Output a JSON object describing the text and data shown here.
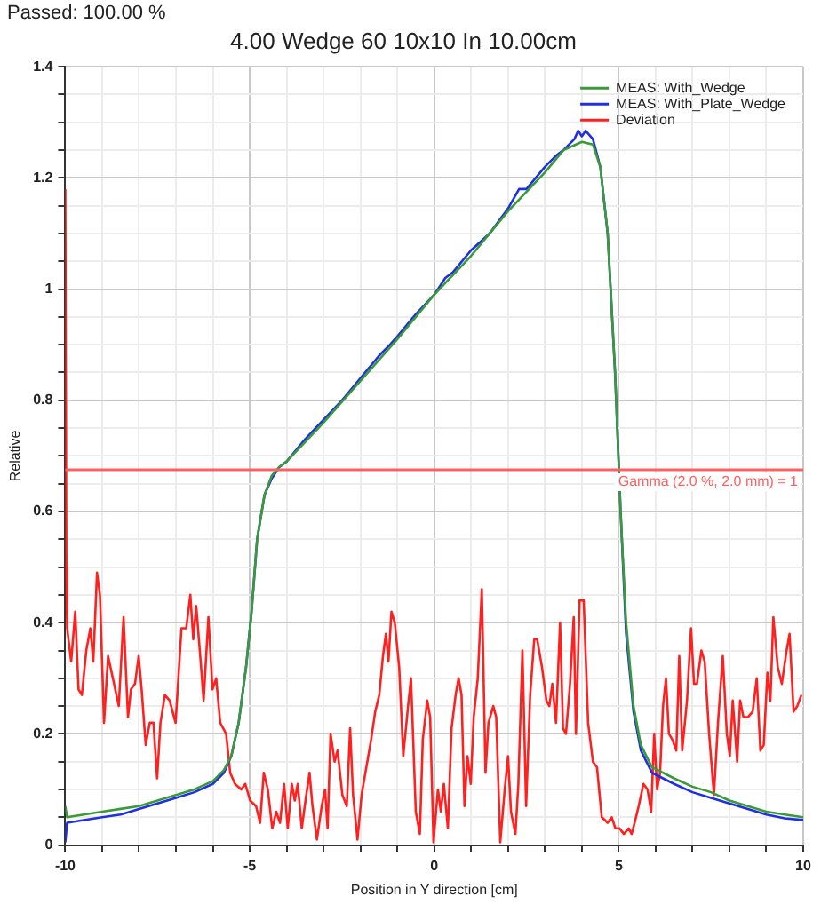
{
  "chart_data": {
    "type": "line",
    "title": "4.00 Wedge 60 10x10 In 10.00cm",
    "xlabel": "Position in Y direction [cm]",
    "ylabel": "Relative",
    "annotations": [
      "Passed: 100.00 %"
    ],
    "xlim": [
      -10,
      10
    ],
    "ylim": [
      0,
      1.4
    ],
    "xticks": [
      -10,
      {
        "value": -9,
        "label": null
      },
      {
        "value": -8,
        "label": null
      },
      {
        "value": -7,
        "label": null
      },
      {
        "value": -6,
        "label": null
      },
      -5,
      {
        "value": -4,
        "label": null
      },
      {
        "value": -3,
        "label": null
      },
      {
        "value": -2,
        "label": null
      },
      {
        "value": -1,
        "label": null
      },
      0,
      {
        "value": 1,
        "label": null
      },
      {
        "value": 2,
        "label": null
      },
      {
        "value": 3,
        "label": null
      },
      {
        "value": 4,
        "label": null
      },
      5,
      {
        "value": 6,
        "label": null
      },
      {
        "value": 7,
        "label": null
      },
      {
        "value": 8,
        "label": null
      },
      {
        "value": 9,
        "label": null
      },
      10
    ],
    "yticks": [
      0,
      {
        "value": 0.05,
        "label": null
      },
      {
        "value": 0.1,
        "label": null
      },
      {
        "value": 0.15,
        "label": null
      },
      0.2,
      {
        "value": 0.25,
        "label": null
      },
      {
        "value": 0.3,
        "label": null
      },
      {
        "value": 0.35,
        "label": null
      },
      0.4,
      {
        "value": 0.45,
        "label": null
      },
      {
        "value": 0.5,
        "label": null
      },
      {
        "value": 0.55,
        "label": null
      },
      0.6,
      {
        "value": 0.65,
        "label": null
      },
      {
        "value": 0.7,
        "label": null
      },
      {
        "value": 0.75,
        "label": null
      },
      0.8,
      {
        "value": 0.85,
        "label": null
      },
      {
        "value": 0.9,
        "label": null
      },
      {
        "value": 0.95,
        "label": null
      },
      1,
      {
        "value": 1.05,
        "label": null
      },
      {
        "value": 1.1,
        "label": null
      },
      {
        "value": 1.15,
        "label": null
      },
      1.2,
      {
        "value": 1.25,
        "label": null
      },
      {
        "value": 1.3,
        "label": null
      },
      {
        "value": 1.35,
        "label": null
      },
      1.4
    ],
    "grid": true,
    "legend": "top right",
    "marker": "none",
    "line_style": "solid",
    "ref_lines": [
      {
        "axis": "y",
        "value": 0.675,
        "label": "Gamma (2.0 %, 2.0 mm) = 1",
        "color": "#ff6060"
      }
    ],
    "series": [
      {
        "name": "MEAS: With_Wedge",
        "color": "#3a9a3a",
        "x": [
          -10,
          -9.95,
          -9.5,
          -9,
          -8.5,
          -8,
          -7.5,
          -7,
          -6.5,
          -6,
          -5.7,
          -5.5,
          -5.3,
          -5.1,
          -4.95,
          -4.8,
          -4.6,
          -4.4,
          -4.2,
          -4,
          -3,
          -2,
          -1,
          0,
          1,
          2,
          3,
          3.5,
          4,
          4.3,
          4.5,
          4.7,
          4.9,
          5.05,
          5.2,
          5.4,
          5.6,
          5.9,
          6.5,
          7,
          7.5,
          8,
          8.5,
          9,
          9.5,
          10
        ],
        "values": [
          0.07,
          0.05,
          0.055,
          0.06,
          0.065,
          0.07,
          0.08,
          0.09,
          0.1,
          0.115,
          0.135,
          0.16,
          0.22,
          0.32,
          0.42,
          0.55,
          0.63,
          0.665,
          0.68,
          0.69,
          0.76,
          0.835,
          0.91,
          0.99,
          1.06,
          1.14,
          1.21,
          1.25,
          1.265,
          1.26,
          1.22,
          1.1,
          0.85,
          0.6,
          0.4,
          0.25,
          0.18,
          0.14,
          0.12,
          0.105,
          0.095,
          0.08,
          0.07,
          0.06,
          0.055,
          0.05
        ]
      },
      {
        "name": "MEAS: With_Plate_Wedge",
        "color": "#2030e0",
        "x": [
          -10,
          -9.95,
          -9.5,
          -9,
          -8.5,
          -8,
          -7.5,
          -7,
          -6.5,
          -6,
          -5.7,
          -5.5,
          -5.3,
          -5.1,
          -4.95,
          -4.8,
          -4.6,
          -4.4,
          -4.2,
          -4,
          -3.5,
          -3,
          -2.5,
          -2,
          -1.5,
          -1.2,
          -1,
          -0.5,
          0,
          0.3,
          0.5,
          1,
          1.5,
          2,
          2.3,
          2.5,
          3,
          3.3,
          3.5,
          3.8,
          3.9,
          4,
          4.1,
          4.3,
          4.5,
          4.7,
          4.9,
          5.05,
          5.2,
          5.4,
          5.6,
          5.9,
          6.5,
          7,
          7.5,
          8,
          8.5,
          9,
          9.5,
          10
        ],
        "values": [
          0.005,
          0.04,
          0.045,
          0.05,
          0.055,
          0.065,
          0.075,
          0.085,
          0.095,
          0.11,
          0.13,
          0.16,
          0.22,
          0.32,
          0.42,
          0.55,
          0.63,
          0.66,
          0.68,
          0.69,
          0.73,
          0.765,
          0.8,
          0.84,
          0.88,
          0.9,
          0.915,
          0.955,
          0.99,
          1.02,
          1.03,
          1.07,
          1.1,
          1.145,
          1.18,
          1.18,
          1.22,
          1.24,
          1.25,
          1.27,
          1.285,
          1.275,
          1.285,
          1.27,
          1.22,
          1.1,
          0.85,
          0.6,
          0.38,
          0.24,
          0.17,
          0.13,
          0.11,
          0.095,
          0.085,
          0.075,
          0.065,
          0.055,
          0.048,
          0.045
        ]
      },
      {
        "name": "Deviation",
        "color": "#ff2020",
        "x": [
          -10,
          -9.97,
          -9.95,
          -9.84,
          -9.73,
          -9.64,
          -9.55,
          -9.43,
          -9.32,
          -9.24,
          -9.14,
          -9.06,
          -8.95,
          -8.84,
          -8.71,
          -8.55,
          -8.42,
          -8.3,
          -8.22,
          -8.11,
          -8.01,
          -7.93,
          -7.82,
          -7.71,
          -7.61,
          -7.51,
          -7.42,
          -7.3,
          -7.17,
          -7.01,
          -6.85,
          -6.72,
          -6.61,
          -6.53,
          -6.45,
          -6.33,
          -6.25,
          -6.12,
          -6.01,
          -5.91,
          -5.8,
          -5.64,
          -5.53,
          -5.4,
          -5.23,
          -5.12,
          -4.99,
          -4.83,
          -4.72,
          -4.62,
          -4.51,
          -4.39,
          -4.28,
          -4.18,
          -4.07,
          -3.97,
          -3.86,
          -3.78,
          -3.7,
          -3.59,
          -3.49,
          -3.38,
          -3.3,
          -3.18,
          -3.05,
          -2.96,
          -2.89,
          -2.81,
          -2.7,
          -2.62,
          -2.49,
          -2.37,
          -2.28,
          -2.2,
          -2.08,
          -1.97,
          -1.84,
          -1.71,
          -1.6,
          -1.49,
          -1.39,
          -1.31,
          -1.24,
          -1.16,
          -1.07,
          -0.95,
          -0.84,
          -0.71,
          -0.63,
          -0.5,
          -0.39,
          -0.31,
          -0.19,
          -0.11,
          -0.02,
          0.1,
          0.18,
          0.26,
          0.37,
          0.47,
          0.58,
          0.66,
          0.74,
          0.82,
          0.9,
          0.99,
          1.07,
          1.18,
          1.29,
          1.39,
          1.47,
          1.6,
          1.68,
          1.79,
          1.91,
          2,
          2.08,
          2.2,
          2.28,
          2.39,
          2.49,
          2.6,
          2.71,
          2.79,
          2.92,
          3.04,
          3.12,
          3.2,
          3.3,
          3.41,
          3.49,
          3.57,
          3.68,
          3.78,
          3.84,
          3.94,
          4.05,
          4.17,
          4.3,
          4.41,
          4.54,
          4.7,
          4.81,
          4.91,
          5.02,
          5.14,
          5.27,
          5.35,
          5.43,
          5.54,
          5.67,
          5.78,
          5.88,
          5.96,
          6.04,
          6.12,
          6.2,
          6.28,
          6.36,
          6.45,
          6.56,
          6.64,
          6.72,
          6.85,
          6.96,
          7.04,
          7.12,
          7.24,
          7.33,
          7.45,
          7.58,
          7.69,
          7.82,
          7.93,
          8.01,
          8.09,
          8.21,
          8.29,
          8.38,
          8.5,
          8.63,
          8.74,
          8.84,
          8.93,
          9.03,
          9.11,
          9.19,
          9.31,
          9.42,
          9.55,
          9.63,
          9.74,
          9.84,
          9.95
        ],
        "values": [
          1.18,
          0.5,
          0.39,
          0.33,
          0.42,
          0.28,
          0.27,
          0.35,
          0.39,
          0.33,
          0.49,
          0.45,
          0.22,
          0.34,
          0.3,
          0.25,
          0.41,
          0.23,
          0.28,
          0.29,
          0.34,
          0.28,
          0.18,
          0.22,
          0.22,
          0.12,
          0.22,
          0.27,
          0.26,
          0.22,
          0.39,
          0.39,
          0.45,
          0.37,
          0.43,
          0.33,
          0.26,
          0.41,
          0.28,
          0.3,
          0.22,
          0.2,
          0.13,
          0.11,
          0.1,
          0.11,
          0.08,
          0.07,
          0.04,
          0.13,
          0.1,
          0.03,
          0.06,
          0.04,
          0.11,
          0.03,
          0.11,
          0.08,
          0.11,
          0.03,
          0.08,
          0.13,
          0.07,
          0.01,
          0.07,
          0.1,
          0.03,
          0.2,
          0.15,
          0.17,
          0.09,
          0.07,
          0.21,
          0.09,
          0.01,
          0.09,
          0.14,
          0.19,
          0.24,
          0.27,
          0.34,
          0.38,
          0.33,
          0.42,
          0.4,
          0.32,
          0.16,
          0.25,
          0.3,
          0.06,
          0.02,
          0.19,
          0.26,
          0.23,
          0.005,
          0.1,
          0.06,
          0.11,
          0.03,
          0.21,
          0.27,
          0.3,
          0.27,
          0.07,
          0.16,
          0.11,
          0.23,
          0.3,
          0.46,
          0.13,
          0.22,
          0.25,
          0.23,
          0.005,
          0.1,
          0.16,
          0.06,
          0.02,
          0.11,
          0.35,
          0.07,
          0.27,
          0.37,
          0.37,
          0.32,
          0.26,
          0.25,
          0.29,
          0.22,
          0.4,
          0.21,
          0.2,
          0.29,
          0.41,
          0.2,
          0.44,
          0.44,
          0.22,
          0.15,
          0.14,
          0.05,
          0.04,
          0.05,
          0.03,
          0.03,
          0.02,
          0.03,
          0.02,
          0.04,
          0.07,
          0.11,
          0.1,
          0.06,
          0.2,
          0.1,
          0.13,
          0.25,
          0.3,
          0.2,
          0.19,
          0.17,
          0.34,
          0.17,
          0.26,
          0.39,
          0.29,
          0.29,
          0.35,
          0.33,
          0.2,
          0.09,
          0.22,
          0.34,
          0.2,
          0.16,
          0.26,
          0.15,
          0.26,
          0.23,
          0.23,
          0.24,
          0.3,
          0.17,
          0.18,
          0.31,
          0.26,
          0.41,
          0.32,
          0.29,
          0.35,
          0.38,
          0.24,
          0.25,
          0.27
        ]
      }
    ]
  }
}
